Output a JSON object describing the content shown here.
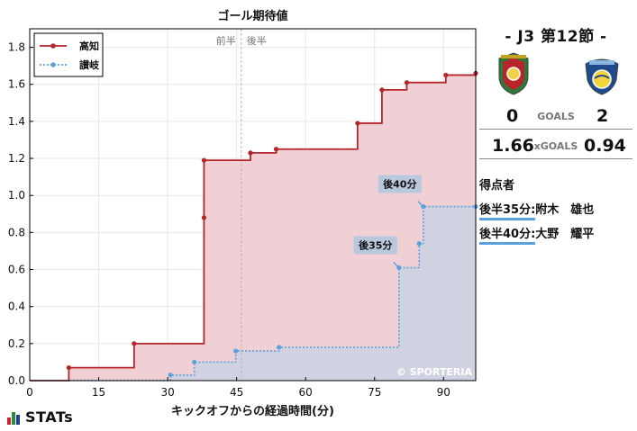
{
  "chart_data": {
    "type": "line",
    "title": "ゴール期待値",
    "xlabel": "キックオフからの経過時間(分)",
    "ylabel": "",
    "xlim": [
      0,
      97
    ],
    "ylim": [
      0,
      1.9
    ],
    "x_ticks": [
      0,
      15,
      30,
      45,
      60,
      75,
      90
    ],
    "y_ticks": [
      0.0,
      0.2,
      0.4,
      0.6,
      0.8,
      1.0,
      1.2,
      1.4,
      1.6,
      1.8
    ],
    "grid": true,
    "legend_position": "top-left",
    "half_marker": {
      "x": 46,
      "labels": [
        "前半",
        "後半"
      ]
    },
    "watermark": "© SPORTERIA",
    "series": [
      {
        "name": "高知",
        "style": "solid-step",
        "color": "#b5252b",
        "fill": "#f0d0d4",
        "x": [
          8.5,
          22.7,
          37.9,
          37.9,
          48.0,
          53.6,
          71.3,
          76.6,
          82.0,
          90.5,
          97
        ],
        "values": [
          0.07,
          0.2,
          0.88,
          1.19,
          1.23,
          1.25,
          1.39,
          1.57,
          1.61,
          1.65,
          1.66
        ]
      },
      {
        "name": "讃岐",
        "style": "dotted-step",
        "color": "#5aa2dd",
        "fill": "#cad2e4",
        "x": [
          30.6,
          35.8,
          44.8,
          54.2,
          80.3,
          84.7,
          85.6,
          97
        ],
        "values": [
          0.03,
          0.1,
          0.16,
          0.18,
          0.61,
          0.74,
          0.94,
          0.94
        ]
      }
    ],
    "annotations": [
      {
        "text": "後40分",
        "x": 85.6,
        "y": 0.94
      },
      {
        "text": "後35分",
        "x": 80.3,
        "y": 0.61
      }
    ]
  },
  "match": {
    "title": "- J3 第12節 -",
    "home_goals": "0",
    "away_goals": "2",
    "goals_label": "GOALS",
    "home_xg": "1.66",
    "away_xg": "0.94",
    "xg_label": "xGOALS",
    "home_crest_color": "#b5252b",
    "away_crest_color": "#1f4a8c"
  },
  "scorers": {
    "title": "得点者",
    "list": [
      {
        "time": "後半35分:",
        "name": "附木　雄也"
      },
      {
        "time": "後半40分:",
        "name": "大野　耀平"
      }
    ]
  },
  "logo": {
    "text": "STATs"
  }
}
